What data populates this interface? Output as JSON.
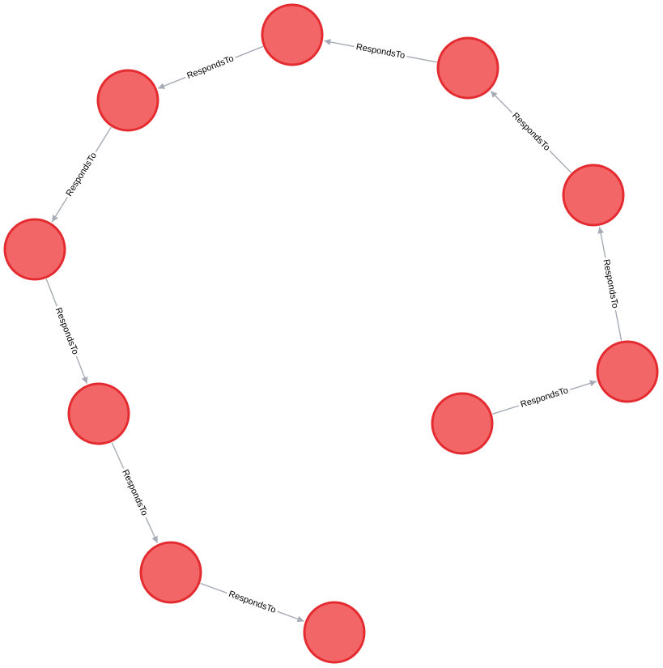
{
  "colors": {
    "node_fill": "#f26668",
    "node_stroke": "#e32b30",
    "edge": "#a6abb5",
    "label_text": "#000000",
    "label_bg": "#ffffff"
  },
  "graph": {
    "nodes": [
      {
        "id": "n1"
      },
      {
        "id": "n2"
      },
      {
        "id": "n3"
      },
      {
        "id": "n4"
      },
      {
        "id": "n5"
      },
      {
        "id": "n6"
      },
      {
        "id": "n7"
      },
      {
        "id": "n8"
      },
      {
        "id": "n9"
      },
      {
        "id": "n10"
      }
    ],
    "edges": [
      {
        "id": "e1",
        "source": "n1",
        "target": "n2",
        "label": "RespondsTo"
      },
      {
        "id": "e2",
        "source": "n2",
        "target": "n3",
        "label": "RespondsTo"
      },
      {
        "id": "e3",
        "source": "n3",
        "target": "n4",
        "label": "RespondsTo"
      },
      {
        "id": "e4",
        "source": "n4",
        "target": "n5",
        "label": "RespondsTo"
      },
      {
        "id": "e5",
        "source": "n5",
        "target": "n6",
        "label": "RespondsTo"
      },
      {
        "id": "e6",
        "source": "n6",
        "target": "n7",
        "label": "RespondsTo"
      },
      {
        "id": "e7",
        "source": "n7",
        "target": "n8",
        "label": "RespondsTo"
      },
      {
        "id": "e8",
        "source": "n8",
        "target": "n9",
        "label": "RespondsTo"
      },
      {
        "id": "e9",
        "source": "n9",
        "target": "n10",
        "label": "RespondsTo"
      }
    ]
  }
}
